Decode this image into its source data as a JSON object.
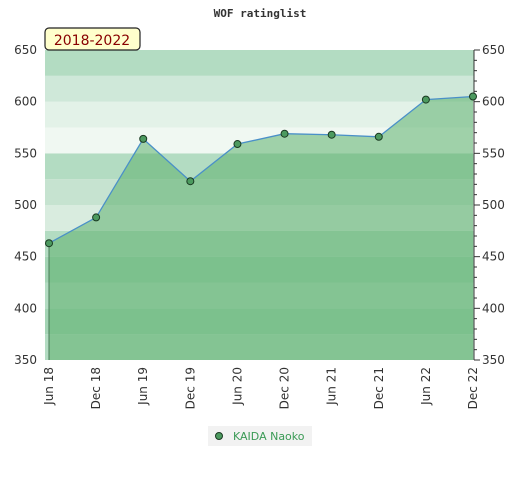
{
  "chart_data": {
    "type": "area",
    "title": "WOF ratinglist",
    "range_label": "2018-2022",
    "xlabel": "",
    "ylabel": "",
    "x_ticks": [
      "Jun 18",
      "Dec 18",
      "Jun 19",
      "Dec 19",
      "Jun 20",
      "Dec 20",
      "Jun 21",
      "Dec 21",
      "Jun 22",
      "Dec 22"
    ],
    "y_ticks": [
      350,
      400,
      450,
      500,
      550,
      600,
      650
    ],
    "ylim": [
      350,
      650
    ],
    "series": [
      {
        "name": "KAIDA Naoko",
        "values": [
          463,
          488,
          564,
          523,
          559,
          569,
          568,
          566,
          602,
          605
        ]
      }
    ],
    "grid": true,
    "legend_position": "bottom-center",
    "colors": {
      "line": "#4a90c8",
      "marker_fill": "#4c9a5f",
      "marker_stroke": "#1a3a22",
      "area_fill": "#5cb06e",
      "legend_bg": "#f2f2f2"
    }
  }
}
